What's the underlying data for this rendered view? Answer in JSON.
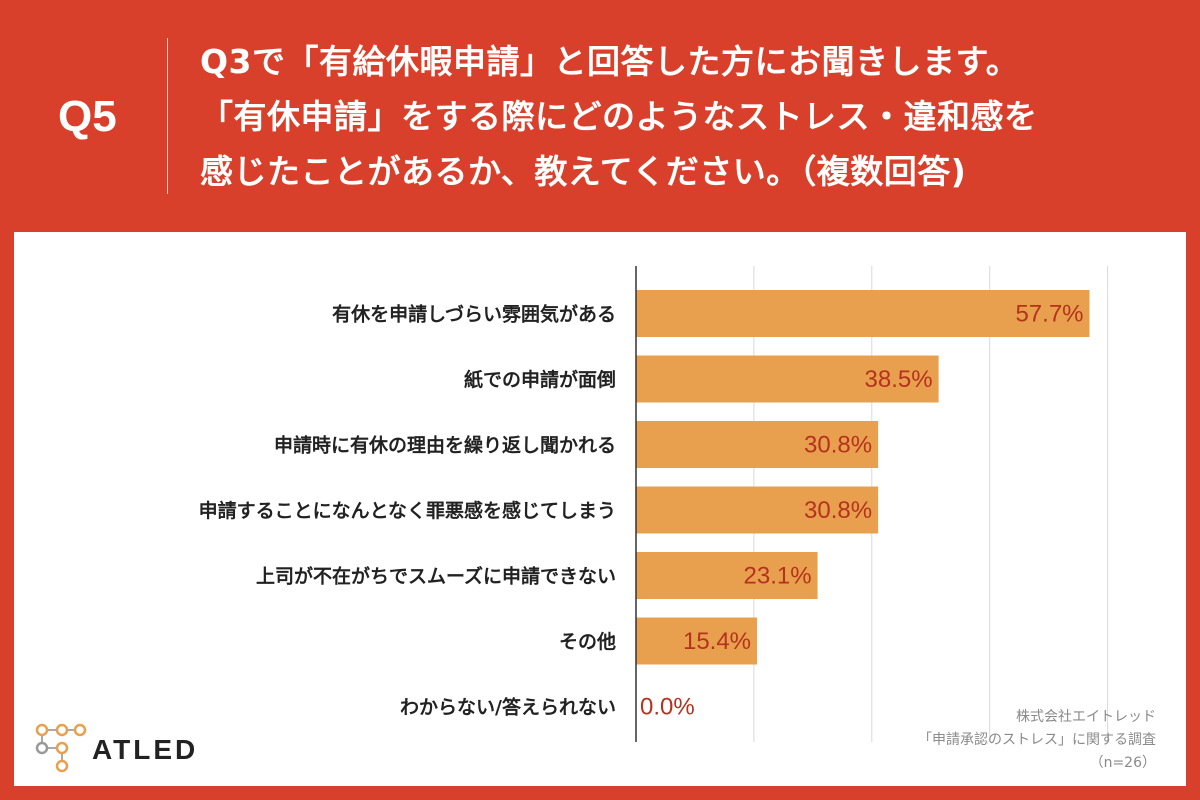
{
  "header": {
    "qnum": "Q5",
    "question_lines": [
      "Q3で「有給休暇申請」と回答した方にお聞きします。",
      "「有休申請」をする際にどのようなストレス・違和感を",
      "感じたことがあるか、教えてください。（複数回答)"
    ]
  },
  "colors": {
    "background": "#d9402b",
    "bar": "#e8a04e",
    "value_text": "#b5321f",
    "panel": "#ffffff"
  },
  "chart_data": {
    "type": "bar",
    "orientation": "horizontal",
    "categories": [
      "有休を申請しづらい雰囲気がある",
      "紙での申請が面倒",
      "申請時に有休の理由を繰り返し聞かれる",
      "申請することになんとなく罪悪感を感じてしまう",
      "上司が不在がちでスムーズに申請できない",
      "その他",
      "わからない/答えられない"
    ],
    "values": [
      57.7,
      38.5,
      30.8,
      30.8,
      23.1,
      15.4,
      0.0
    ],
    "value_labels": [
      "57.7%",
      "38.5%",
      "30.8%",
      "30.8%",
      "23.1%",
      "15.4%",
      "0.0%"
    ],
    "xlim": [
      0,
      60
    ],
    "grid": true
  },
  "footer": {
    "lines": [
      "株式会社エイトレッド",
      "「申請承認のストレス」に関する調査",
      "（n=26）"
    ]
  },
  "logo": {
    "text": "ATLED"
  }
}
